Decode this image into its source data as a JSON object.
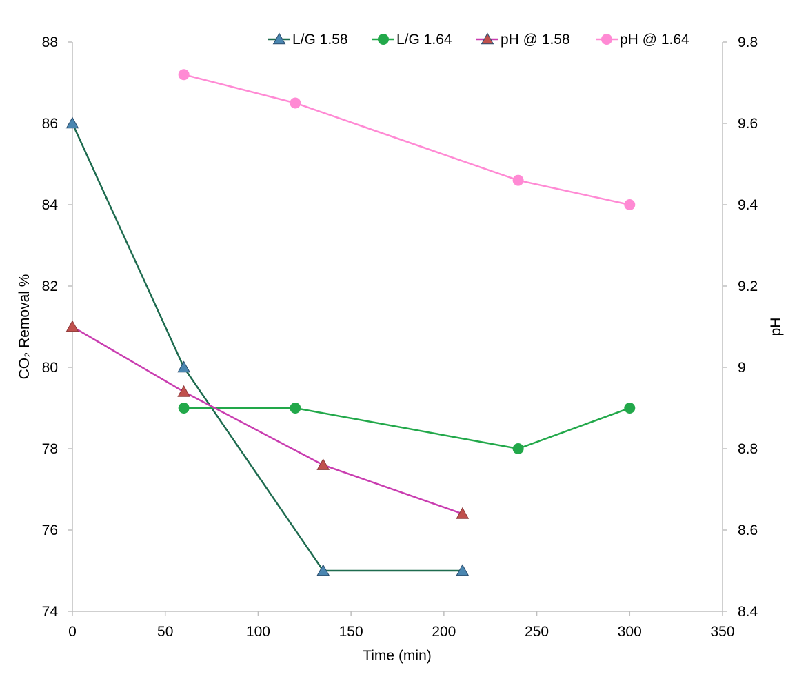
{
  "chart_data": {
    "type": "line",
    "title": "",
    "xlabel": "Time (min)",
    "ylabel": "CO₂ Removal %",
    "y2label": "pH",
    "xlim": [
      0,
      350
    ],
    "ylim": [
      74,
      88
    ],
    "y2lim": [
      8.4,
      9.8
    ],
    "xticks": [
      "0",
      "50",
      "100",
      "150",
      "200",
      "250",
      "300",
      "350"
    ],
    "yticks": [
      "74",
      "76",
      "78",
      "80",
      "82",
      "84",
      "86",
      "88"
    ],
    "y2ticks": [
      "8.4",
      "8.6",
      "8.8",
      "9",
      "9.2",
      "9.4",
      "9.6",
      "9.8"
    ],
    "grid": false,
    "legend_position": "top",
    "series": [
      {
        "name": "L/G 1.58",
        "axis": "left",
        "marker": "triangle",
        "color": "#1e6b4f",
        "marker_color": "#4a86b0",
        "x": [
          0,
          60,
          135,
          210
        ],
        "y": [
          86,
          80,
          75,
          75
        ]
      },
      {
        "name": "L/G 1.64",
        "axis": "left",
        "marker": "circle",
        "color": "#22a84a",
        "marker_color": "#22a84a",
        "x": [
          60,
          120,
          240,
          300
        ],
        "y": [
          79,
          79,
          78,
          79
        ]
      },
      {
        "name": "pH @ 1.58",
        "axis": "right",
        "marker": "triangle",
        "color": "#c93db0",
        "marker_color": "#c0504d",
        "x": [
          0,
          60,
          135,
          210
        ],
        "y": [
          9.1,
          8.94,
          8.76,
          8.64
        ]
      },
      {
        "name": "pH @ 1.64",
        "axis": "right",
        "marker": "circle",
        "color": "#ff8ad4",
        "marker_color": "#ff8ad4",
        "x": [
          60,
          120,
          240,
          300
        ],
        "y": [
          9.72,
          9.65,
          9.46,
          9.4
        ]
      }
    ]
  }
}
